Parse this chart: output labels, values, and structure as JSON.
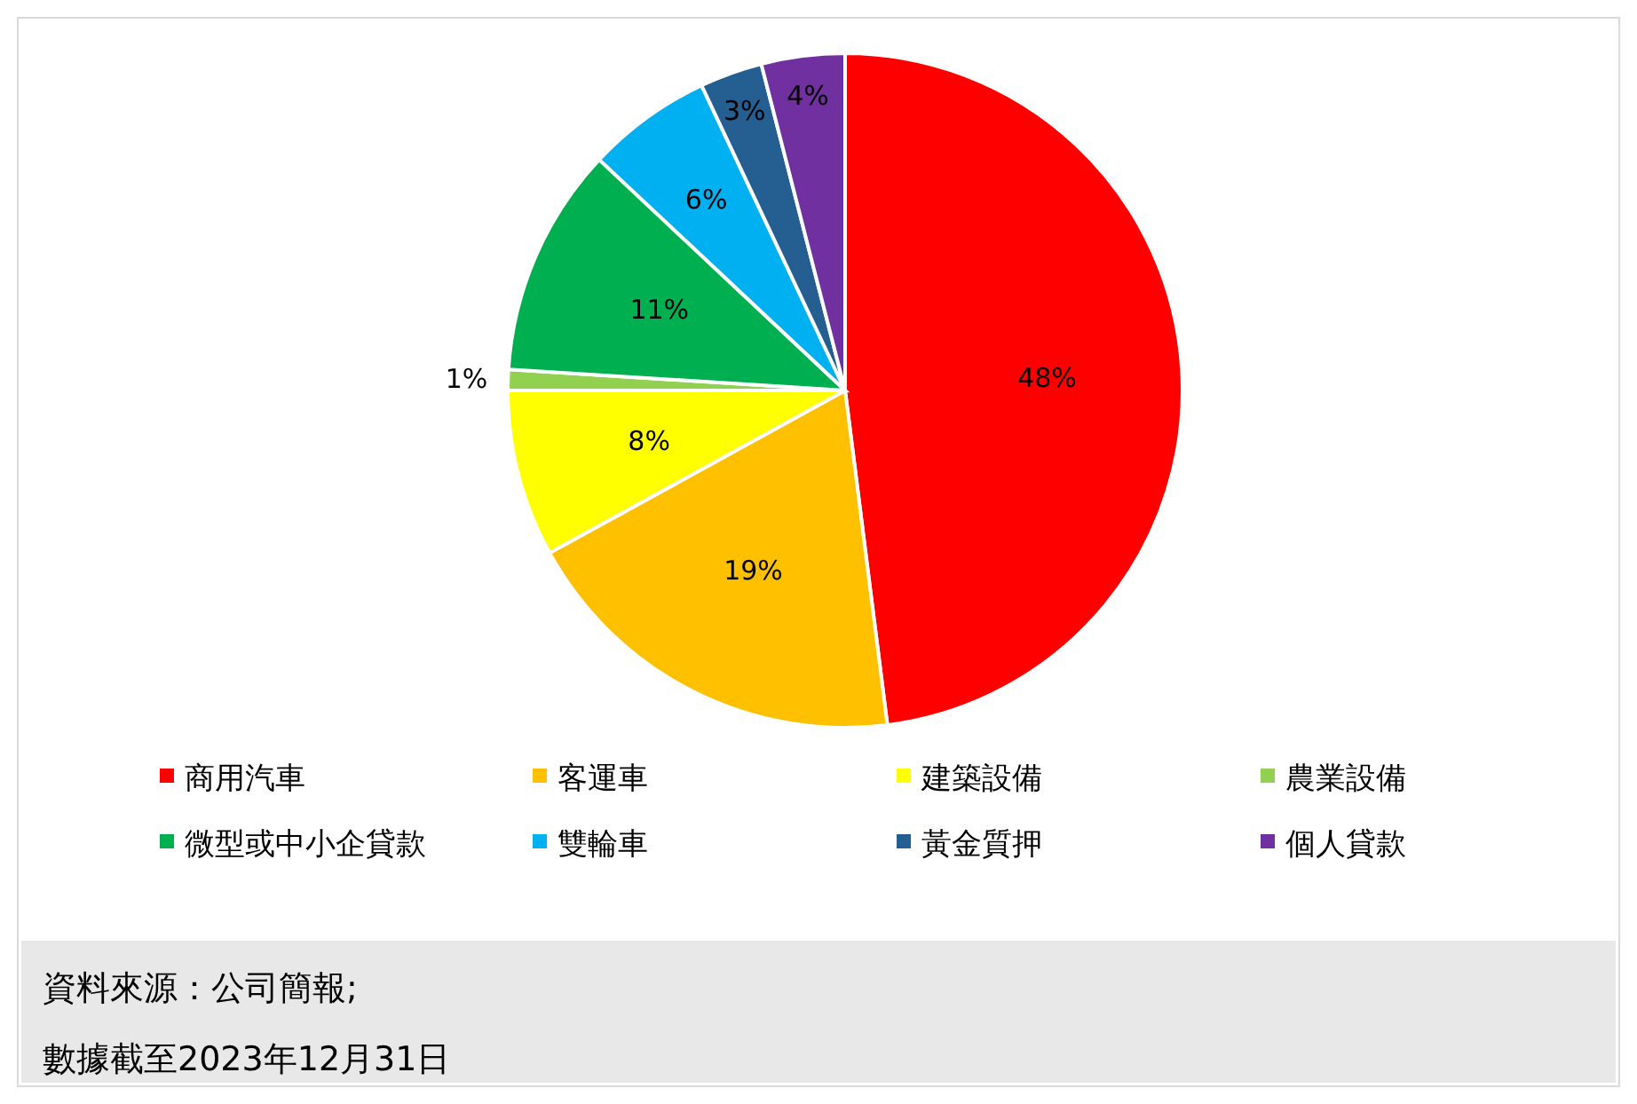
{
  "chart_data": {
    "type": "pie",
    "categories": [
      "商用汽車",
      "客運車",
      "建築設備",
      "農業設備",
      "微型或中小企貸款",
      "雙輪車",
      "黃金質押",
      "個人貸款"
    ],
    "values": [
      48,
      19,
      8,
      1,
      11,
      6,
      3,
      4
    ],
    "colors": [
      "#ff0000",
      "#ffc000",
      "#ffff00",
      "#92d050",
      "#00b050",
      "#00b0f0",
      "#255e91",
      "#7030a0"
    ],
    "value_labels": [
      "48%",
      "19%",
      "8%",
      "1%",
      "11%",
      "6%",
      "3%",
      "4%"
    ],
    "legend": "bottom",
    "annotations": [
      "資料來源：公司簡報;",
      "數據截至2023年12月31日"
    ]
  }
}
